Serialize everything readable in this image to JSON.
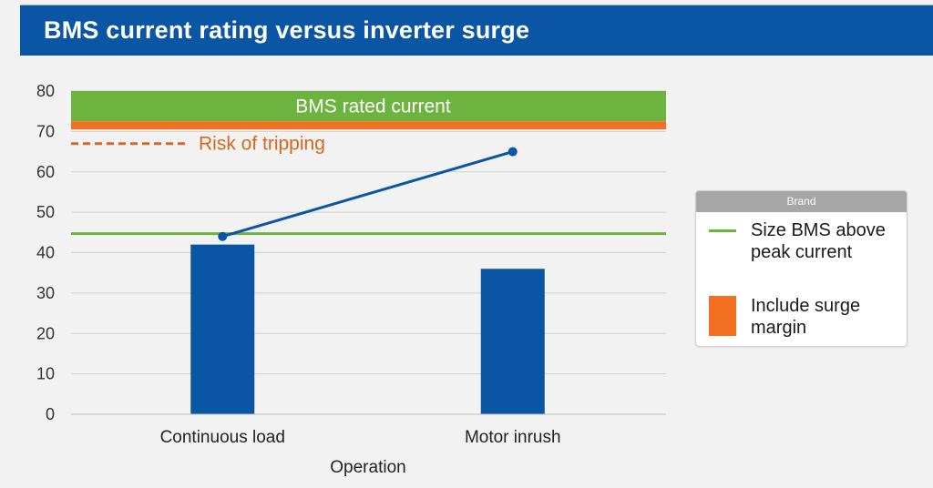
{
  "header": {
    "title": "BMS current rating versus inverter surge"
  },
  "chart_data": {
    "type": "bar",
    "xlabel": "Operation",
    "ylabel": "",
    "ylim": [
      0,
      80
    ],
    "yticks": [
      0,
      10,
      20,
      30,
      40,
      50,
      60,
      70,
      80
    ],
    "grid": true,
    "categories": [
      "Continuous load",
      "Motor inrush"
    ],
    "series": [
      {
        "values": [
          42,
          36
        ],
        "color": "#0a56a4"
      }
    ],
    "line_series": {
      "values": [
        44,
        65
      ],
      "color": "#0a56a4"
    },
    "reference_lines": [
      {
        "y": 44.7,
        "color": "#6db33f",
        "style": "solid"
      }
    ],
    "bands": [
      {
        "label": "BMS rated current",
        "from": 72.5,
        "to": 80,
        "color": "#6db33f"
      },
      {
        "from": 70.5,
        "to": 72.5,
        "color": "#f36f21"
      }
    ],
    "annotations": [
      {
        "text": "Risk of tripping",
        "y": 67,
        "color": "#d9661c",
        "line_style": "dashed"
      }
    ],
    "legend": {
      "position": "right",
      "title": "Brand",
      "items": [
        {
          "label": "Size BMS above peak current",
          "marker": "line",
          "color": "#6db33f"
        },
        {
          "label": "Include surge margin",
          "marker": "square",
          "color": "#f36f21"
        }
      ]
    }
  }
}
